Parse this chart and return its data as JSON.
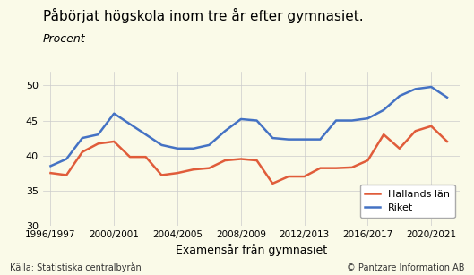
{
  "title": "Påbörjat högskola inom tre år efter gymnasiet.",
  "subtitle": "Procent",
  "xlabel": "Examensår från gymnasiet",
  "background_color": "#FAFAE8",
  "grid_color": "#CCCCCC",
  "source_left": "Källa: Statistiska centralbyrån",
  "source_right": "© Pantzare Information AB",
  "ylim": [
    30,
    52
  ],
  "yticks": [
    30,
    35,
    40,
    45,
    50
  ],
  "x_labels": [
    "1996/1997",
    "2000/2001",
    "2004/2005",
    "2008/2009",
    "2012/2013",
    "2016/2017",
    "2020/2021"
  ],
  "x_tick_positions": [
    1996,
    2000,
    2004,
    2008,
    2012,
    2016,
    2020
  ],
  "years": [
    1996,
    1997,
    1998,
    1999,
    2000,
    2001,
    2002,
    2003,
    2004,
    2005,
    2006,
    2007,
    2008,
    2009,
    2010,
    2011,
    2012,
    2013,
    2014,
    2015,
    2016,
    2017,
    2018,
    2019,
    2020,
    2021
  ],
  "hallands_lan": [
    37.5,
    37.2,
    40.5,
    41.7,
    42.0,
    39.8,
    39.8,
    37.2,
    37.5,
    38.0,
    38.2,
    39.3,
    39.5,
    39.3,
    36.0,
    37.0,
    37.0,
    38.2,
    38.2,
    38.3,
    39.3,
    43.0,
    41.0,
    43.5,
    44.2,
    42.0
  ],
  "riket": [
    38.5,
    39.5,
    42.5,
    43.0,
    46.0,
    44.5,
    43.0,
    41.5,
    41.0,
    41.0,
    41.5,
    43.5,
    45.2,
    45.0,
    42.5,
    42.3,
    42.3,
    42.3,
    45.0,
    45.0,
    45.3,
    46.5,
    48.5,
    49.5,
    49.8,
    48.3
  ],
  "hallands_color": "#E05C3A",
  "riket_color": "#4472C4",
  "line_width": 1.8,
  "legend_labels": [
    "Hallands län",
    "Riket"
  ],
  "xlim": [
    1995.5,
    2021.8
  ]
}
